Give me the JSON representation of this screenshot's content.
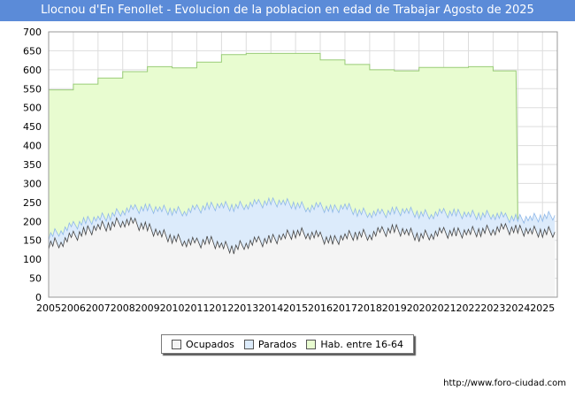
{
  "title": "Llocnou d'En Fenollet - Evolucion de la poblacion en edad de Trabajar Agosto de 2025",
  "source": "http://www.foro-ciudad.com",
  "colors": {
    "title_bg": "#5b8bd8",
    "hab": "#e8fcd0",
    "hab_line": "#99cc77",
    "parados": "#dcebfb",
    "parados_line": "#8fb8e8",
    "ocupados": "#f4f4f4",
    "ocupados_line": "#444444"
  },
  "chart_data": {
    "type": "area",
    "title": "Llocnou d'En Fenollet - Evolucion de la poblacion en edad de Trabajar Agosto de 2025",
    "xlabel": "",
    "ylabel": "",
    "xlim": [
      2005,
      2025.6
    ],
    "ylim": [
      0,
      700
    ],
    "yticks": [
      0,
      50,
      100,
      150,
      200,
      250,
      300,
      350,
      400,
      450,
      500,
      550,
      600,
      650,
      700
    ],
    "xticks": [
      "2005",
      "2006",
      "2007",
      "2008",
      "2009",
      "2010",
      "2011",
      "2012",
      "2013",
      "2014",
      "2015",
      "2016",
      "2017",
      "2018",
      "2019",
      "2020",
      "2021",
      "2022",
      "2023",
      "2024",
      "2025"
    ],
    "grid": true,
    "legend_position": "bottom",
    "series": [
      {
        "name": "Hab. entre 16-64",
        "years": [
          2005,
          2006,
          2007,
          2008,
          2009,
          2010,
          2011,
          2012,
          2013,
          2014,
          2015,
          2016,
          2017,
          2018,
          2019,
          2020,
          2021,
          2022,
          2023
        ],
        "values": [
          547,
          562,
          578,
          595,
          608,
          605,
          620,
          640,
          643,
          643,
          643,
          626,
          614,
          600,
          597,
          606,
          606,
          608,
          597
        ]
      },
      {
        "name": "Parados",
        "x": [
          2005.0,
          2005.5,
          2006.0,
          2006.5,
          2007.0,
          2007.5,
          2008.0,
          2008.5,
          2009.0,
          2009.5,
          2010.0,
          2010.5,
          2011.0,
          2011.5,
          2012.0,
          2012.5,
          2013.0,
          2013.5,
          2014.0,
          2014.5,
          2015.0,
          2015.5,
          2016.0,
          2016.5,
          2017.0,
          2017.5,
          2018.0,
          2018.5,
          2019.0,
          2019.5,
          2020.0,
          2020.5,
          2021.0,
          2021.5,
          2022.0,
          2022.5,
          2023.0,
          2023.5,
          2024.0,
          2024.5,
          2025.0,
          2025.5
        ],
        "values": [
          162,
          175,
          188,
          200,
          208,
          215,
          228,
          232,
          234,
          232,
          228,
          226,
          232,
          238,
          242,
          238,
          244,
          246,
          250,
          250,
          244,
          236,
          238,
          230,
          240,
          225,
          222,
          220,
          226,
          228,
          220,
          218,
          222,
          220,
          218,
          216,
          218,
          210,
          206,
          208,
          212,
          216
        ]
      },
      {
        "name": "Ocupados",
        "x": [
          2005.0,
          2005.5,
          2006.0,
          2006.5,
          2007.0,
          2007.5,
          2008.0,
          2008.5,
          2009.0,
          2009.5,
          2010.0,
          2010.5,
          2011.0,
          2011.5,
          2012.0,
          2012.5,
          2013.0,
          2013.5,
          2014.0,
          2014.5,
          2015.0,
          2015.5,
          2016.0,
          2016.5,
          2017.0,
          2017.5,
          2018.0,
          2018.5,
          2019.0,
          2019.5,
          2020.0,
          2020.5,
          2021.0,
          2021.5,
          2022.0,
          2022.5,
          2023.0,
          2023.5,
          2024.0,
          2024.5,
          2025.0,
          2025.5
        ],
        "values": [
          140,
          145,
          160,
          172,
          185,
          190,
          200,
          194,
          182,
          168,
          156,
          148,
          142,
          148,
          136,
          128,
          142,
          146,
          150,
          160,
          170,
          168,
          158,
          146,
          160,
          166,
          164,
          172,
          178,
          172,
          160,
          166,
          170,
          168,
          172,
          174,
          178,
          180,
          176,
          174,
          172,
          172
        ]
      }
    ]
  },
  "legend": [
    {
      "label": "Ocupados"
    },
    {
      "label": "Parados"
    },
    {
      "label": "Hab. entre 16-64"
    }
  ]
}
